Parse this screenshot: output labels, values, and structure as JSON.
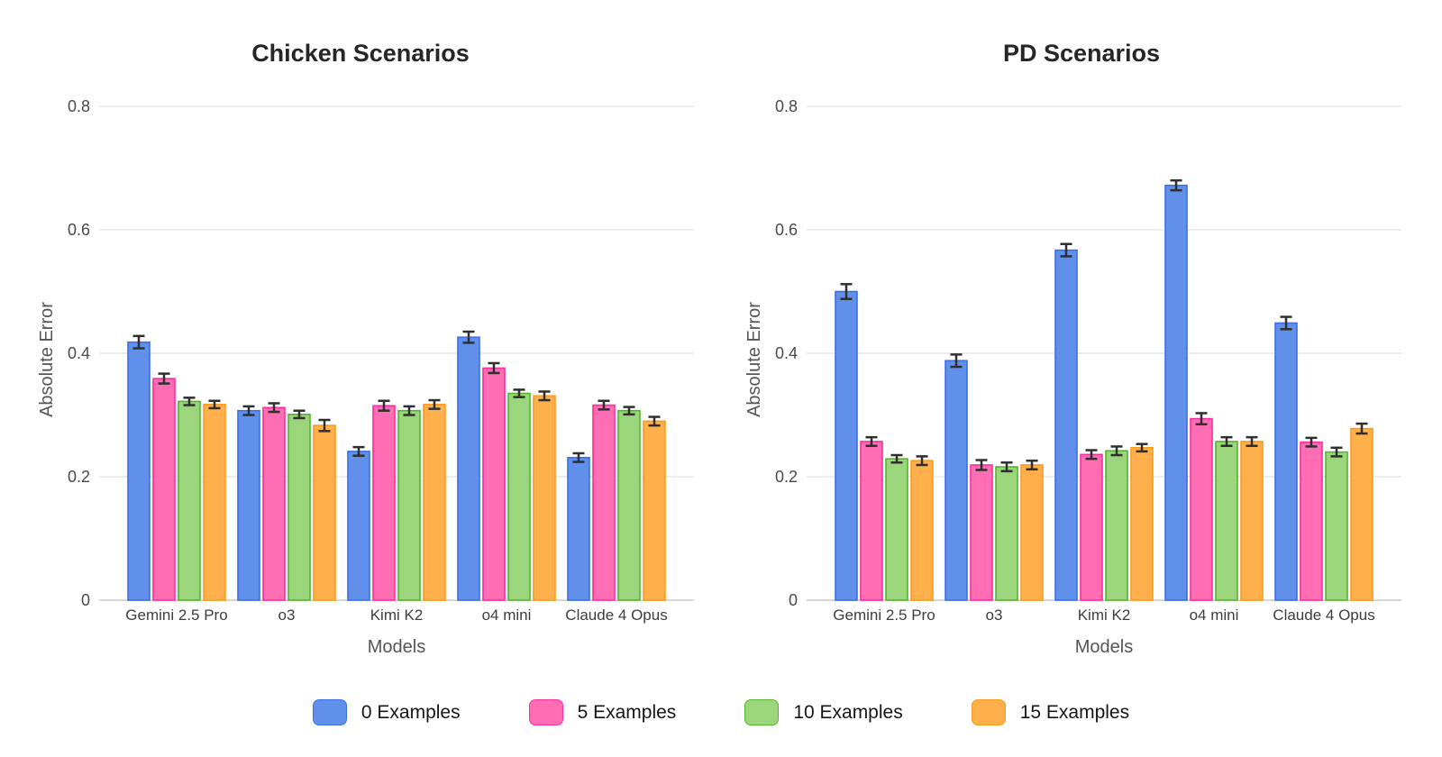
{
  "figure": {
    "background": "#ffffff",
    "legend": [
      {
        "label": "0 Examples",
        "color": "#6190EA",
        "edge": "#3D6FE4"
      },
      {
        "label": "5 Examples",
        "color": "#FF6EB5",
        "edge": "#FA2E9E"
      },
      {
        "label": "10 Examples",
        "color": "#9BD67D",
        "edge": "#55B42C"
      },
      {
        "label": "15 Examples",
        "color": "#FFAF4B",
        "edge": "#F89C1C"
      }
    ],
    "error_bar_color": "#2F2F2F",
    "grid_color": "#E4E4E4",
    "axis_line_color": "#C9C9C9",
    "tick_label_color": "#4A4A4A",
    "category_label_color": "#3D3D3D",
    "axis_title_color": "#555555",
    "title_color": "#262626"
  },
  "chart_data": [
    {
      "type": "bar",
      "title": "Chicken Scenarios",
      "xlabel": "Models",
      "ylabel": "Absolute Error",
      "ylim": [
        0,
        0.8
      ],
      "yticks": [
        0,
        0.2,
        0.4,
        0.6,
        0.8
      ],
      "ytick_labels": [
        "0",
        "0.2",
        "0.4",
        "0.6",
        "0.8"
      ],
      "grid": true,
      "legend_position": "shared-bottom",
      "categories": [
        "Gemini 2.5 Pro",
        "o3",
        "Kimi K2",
        "o4 mini",
        "Claude 4 Opus"
      ],
      "series": [
        {
          "name": "0 Examples",
          "values": [
            0.418,
            0.307,
            0.241,
            0.426,
            0.231
          ],
          "errors": [
            0.01,
            0.007,
            0.007,
            0.009,
            0.007
          ]
        },
        {
          "name": "5 Examples",
          "values": [
            0.359,
            0.312,
            0.315,
            0.376,
            0.316
          ],
          "errors": [
            0.008,
            0.007,
            0.008,
            0.008,
            0.007
          ]
        },
        {
          "name": "10 Examples",
          "values": [
            0.322,
            0.301,
            0.307,
            0.335,
            0.307
          ],
          "errors": [
            0.006,
            0.006,
            0.007,
            0.006,
            0.006
          ]
        },
        {
          "name": "15 Examples",
          "values": [
            0.317,
            0.283,
            0.317,
            0.331,
            0.29
          ],
          "errors": [
            0.006,
            0.009,
            0.007,
            0.007,
            0.007
          ]
        }
      ]
    },
    {
      "type": "bar",
      "title": "PD Scenarios",
      "xlabel": "Models",
      "ylabel": "Absolute Error",
      "ylim": [
        0,
        0.8
      ],
      "yticks": [
        0,
        0.2,
        0.4,
        0.6,
        0.8
      ],
      "ytick_labels": [
        "0",
        "0.2",
        "0.4",
        "0.6",
        "0.8"
      ],
      "grid": true,
      "legend_position": "shared-bottom",
      "categories": [
        "Gemini 2.5 Pro",
        "o3",
        "Kimi K2",
        "o4 mini",
        "Claude 4 Opus"
      ],
      "series": [
        {
          "name": "0 Examples",
          "values": [
            0.5,
            0.388,
            0.567,
            0.672,
            0.449
          ],
          "errors": [
            0.012,
            0.01,
            0.01,
            0.008,
            0.01
          ]
        },
        {
          "name": "5 Examples",
          "values": [
            0.257,
            0.219,
            0.236,
            0.294,
            0.256
          ],
          "errors": [
            0.007,
            0.008,
            0.007,
            0.009,
            0.007
          ]
        },
        {
          "name": "10 Examples",
          "values": [
            0.229,
            0.216,
            0.242,
            0.257,
            0.24
          ],
          "errors": [
            0.006,
            0.007,
            0.007,
            0.007,
            0.007
          ]
        },
        {
          "name": "15 Examples",
          "values": [
            0.226,
            0.219,
            0.247,
            0.257,
            0.278
          ],
          "errors": [
            0.007,
            0.007,
            0.006,
            0.007,
            0.008
          ]
        }
      ]
    }
  ]
}
